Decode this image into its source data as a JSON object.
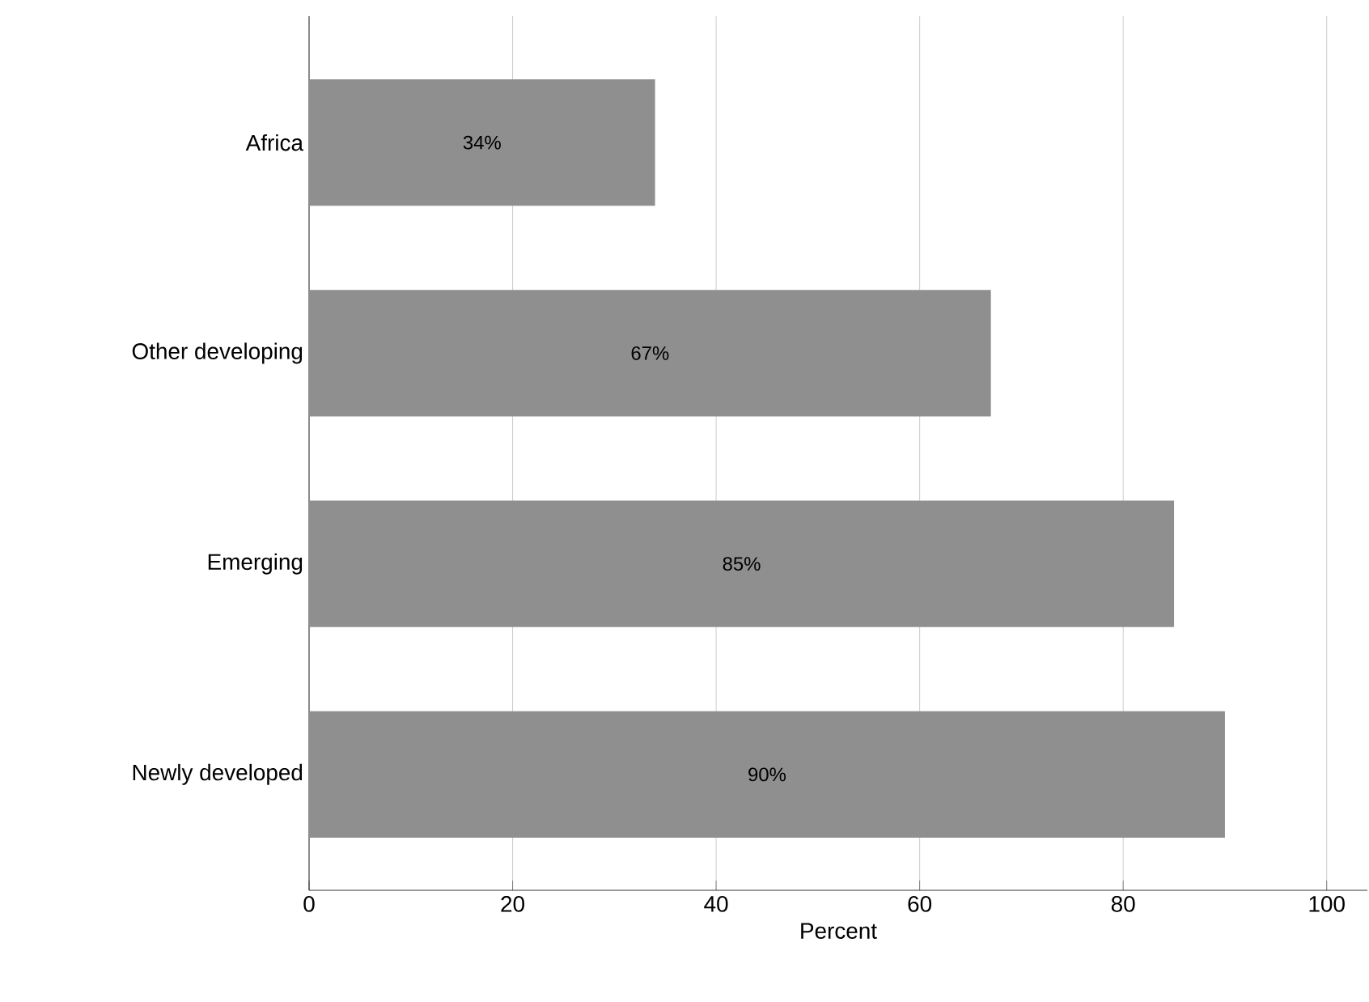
{
  "chart_data": {
    "type": "bar",
    "orientation": "horizontal",
    "xlabel": "Percent",
    "categories": [
      "Africa",
      "Other developing",
      "Emerging",
      "Newly developed"
    ],
    "values": [
      34,
      67,
      85,
      90
    ],
    "value_labels": [
      "34%",
      "67%",
      "85%",
      "90%"
    ],
    "color": "#8f8f8f",
    "xlim": [
      0,
      104
    ],
    "xticks": [
      0,
      20,
      40,
      60,
      80,
      100
    ],
    "grid": "x"
  }
}
